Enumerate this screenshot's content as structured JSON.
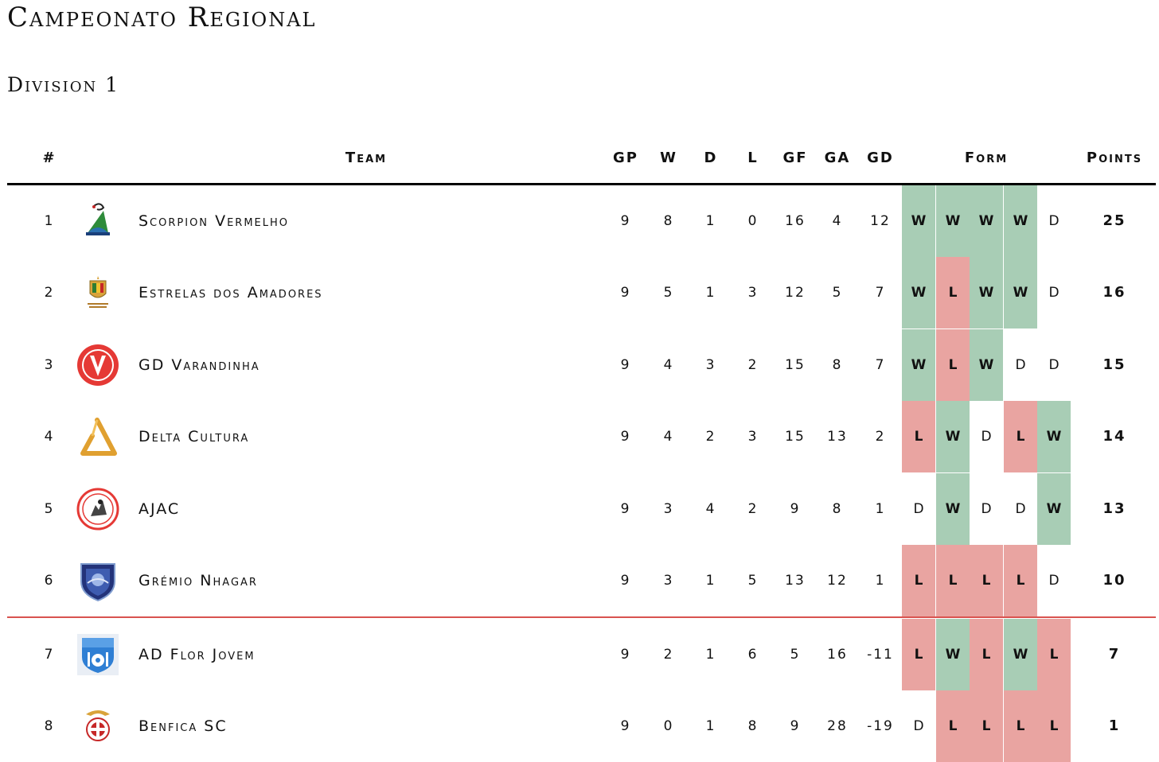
{
  "page": {
    "title": "Campeonato Regional",
    "subtitle": "Division 1"
  },
  "columns": {
    "rank": "#",
    "team": "Team",
    "gp": "GP",
    "w": "W",
    "d": "D",
    "l": "L",
    "gf": "GF",
    "ga": "GA",
    "gd": "GD",
    "form": "Form",
    "points": "Points"
  },
  "colors": {
    "win": "#a8cdb5",
    "loss": "#e9a4a1",
    "relegation_line": "#d9534f"
  },
  "teams": [
    {
      "rank": "1",
      "name": "Scorpion Vermelho",
      "logo": "scorpion-vermelho-logo",
      "gp": "9",
      "w": "8",
      "d": "1",
      "l": "0",
      "gf": "16",
      "ga": "4",
      "gd": "12",
      "form": [
        "W",
        "W",
        "W",
        "W",
        "D"
      ],
      "points": "25"
    },
    {
      "rank": "2",
      "name": "Estrelas dos Amadores",
      "logo": "estrelas-dos-amadores-logo",
      "gp": "9",
      "w": "5",
      "d": "1",
      "l": "3",
      "gf": "12",
      "ga": "5",
      "gd": "7",
      "form": [
        "W",
        "L",
        "W",
        "W",
        "D"
      ],
      "points": "16"
    },
    {
      "rank": "3",
      "name": "GD Varandinha",
      "logo": "gd-varandinha-logo",
      "gp": "9",
      "w": "4",
      "d": "3",
      "l": "2",
      "gf": "15",
      "ga": "8",
      "gd": "7",
      "form": [
        "W",
        "L",
        "W",
        "D",
        "D"
      ],
      "points": "15"
    },
    {
      "rank": "4",
      "name": "Delta Cultura",
      "logo": "delta-cultura-logo",
      "gp": "9",
      "w": "4",
      "d": "2",
      "l": "3",
      "gf": "15",
      "ga": "13",
      "gd": "2",
      "form": [
        "L",
        "W",
        "D",
        "L",
        "W"
      ],
      "points": "14"
    },
    {
      "rank": "5",
      "name": "AJAC",
      "logo": "ajac-logo",
      "gp": "9",
      "w": "3",
      "d": "4",
      "l": "2",
      "gf": "9",
      "ga": "8",
      "gd": "1",
      "form": [
        "D",
        "W",
        "D",
        "D",
        "W"
      ],
      "points": "13"
    },
    {
      "rank": "6",
      "name": "Grémio Nhagar",
      "logo": "gremio-nhagar-logo",
      "gp": "9",
      "w": "3",
      "d": "1",
      "l": "5",
      "gf": "13",
      "ga": "12",
      "gd": "1",
      "form": [
        "L",
        "L",
        "L",
        "L",
        "D"
      ],
      "points": "10"
    },
    {
      "rank": "7",
      "name": "AD Flor Jovem",
      "logo": "ad-flor-jovem-logo",
      "gp": "9",
      "w": "2",
      "d": "1",
      "l": "6",
      "gf": "5",
      "ga": "16",
      "gd": "-11",
      "form": [
        "L",
        "W",
        "L",
        "W",
        "L"
      ],
      "points": "7"
    },
    {
      "rank": "8",
      "name": "Benfica SC",
      "logo": "benfica-sc-logo",
      "gp": "9",
      "w": "0",
      "d": "1",
      "l": "8",
      "gf": "9",
      "ga": "28",
      "gd": "-19",
      "form": [
        "D",
        "L",
        "L",
        "L",
        "L"
      ],
      "points": "1"
    }
  ]
}
